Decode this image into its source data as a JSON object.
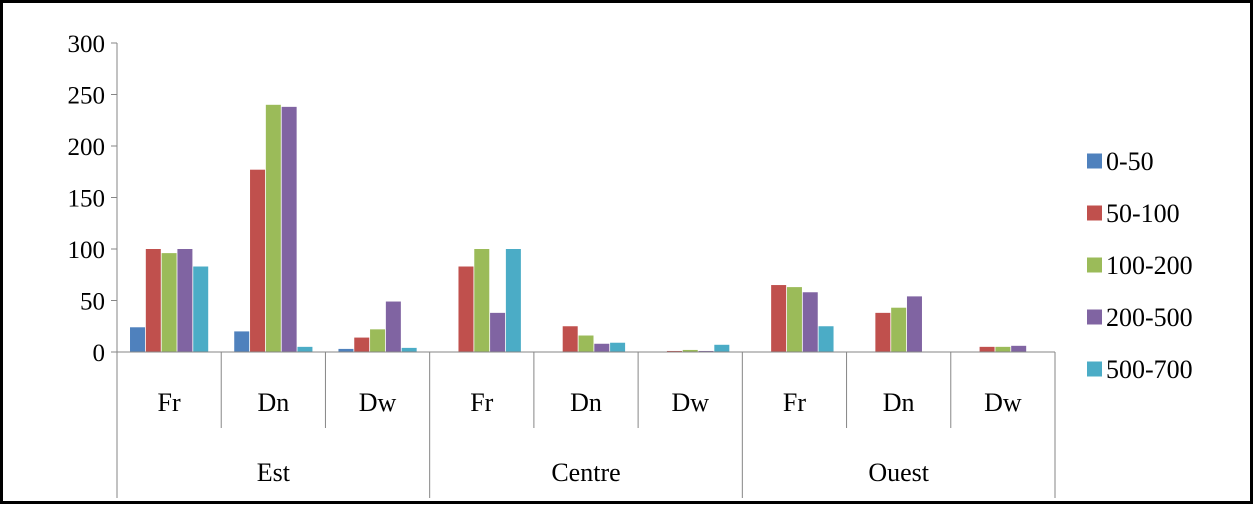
{
  "chart_data": {
    "type": "bar",
    "title": "",
    "xlabel": "",
    "ylabel": "",
    "ylim": [
      0,
      300
    ],
    "yticks": [
      "0",
      "50",
      "100",
      "150",
      "200",
      "250",
      "300"
    ],
    "grid": false,
    "legend_position": "right",
    "groups": [
      {
        "label": "Est",
        "categories": [
          "Fr",
          "Dn",
          "Dw"
        ]
      },
      {
        "label": "Centre",
        "categories": [
          "Fr",
          "Dn",
          "Dw"
        ]
      },
      {
        "label": "Ouest",
        "categories": [
          "Fr",
          "Dn",
          "Dw"
        ]
      }
    ],
    "categories": [
      "Fr",
      "Dn",
      "Dw",
      "Fr",
      "Dn",
      "Dw",
      "Fr",
      "Dn",
      "Dw"
    ],
    "series": [
      {
        "name": "0-50",
        "color": "#4F81BD",
        "values": [
          24,
          20,
          3,
          0,
          0,
          0,
          0,
          0,
          0
        ]
      },
      {
        "name": "50-100",
        "color": "#C0504D",
        "values": [
          100,
          177,
          14,
          83,
          25,
          1,
          65,
          38,
          5
        ]
      },
      {
        "name": "100-200",
        "color": "#9BBB59",
        "values": [
          96,
          240,
          22,
          100,
          16,
          2,
          63,
          43,
          5
        ]
      },
      {
        "name": "200-500",
        "color": "#8064A2",
        "values": [
          100,
          238,
          49,
          38,
          8,
          1,
          58,
          54,
          6
        ]
      },
      {
        "name": "500-700",
        "color": "#4BACC6",
        "values": [
          83,
          5,
          4,
          100,
          9,
          7,
          25,
          0,
          0
        ]
      }
    ]
  }
}
